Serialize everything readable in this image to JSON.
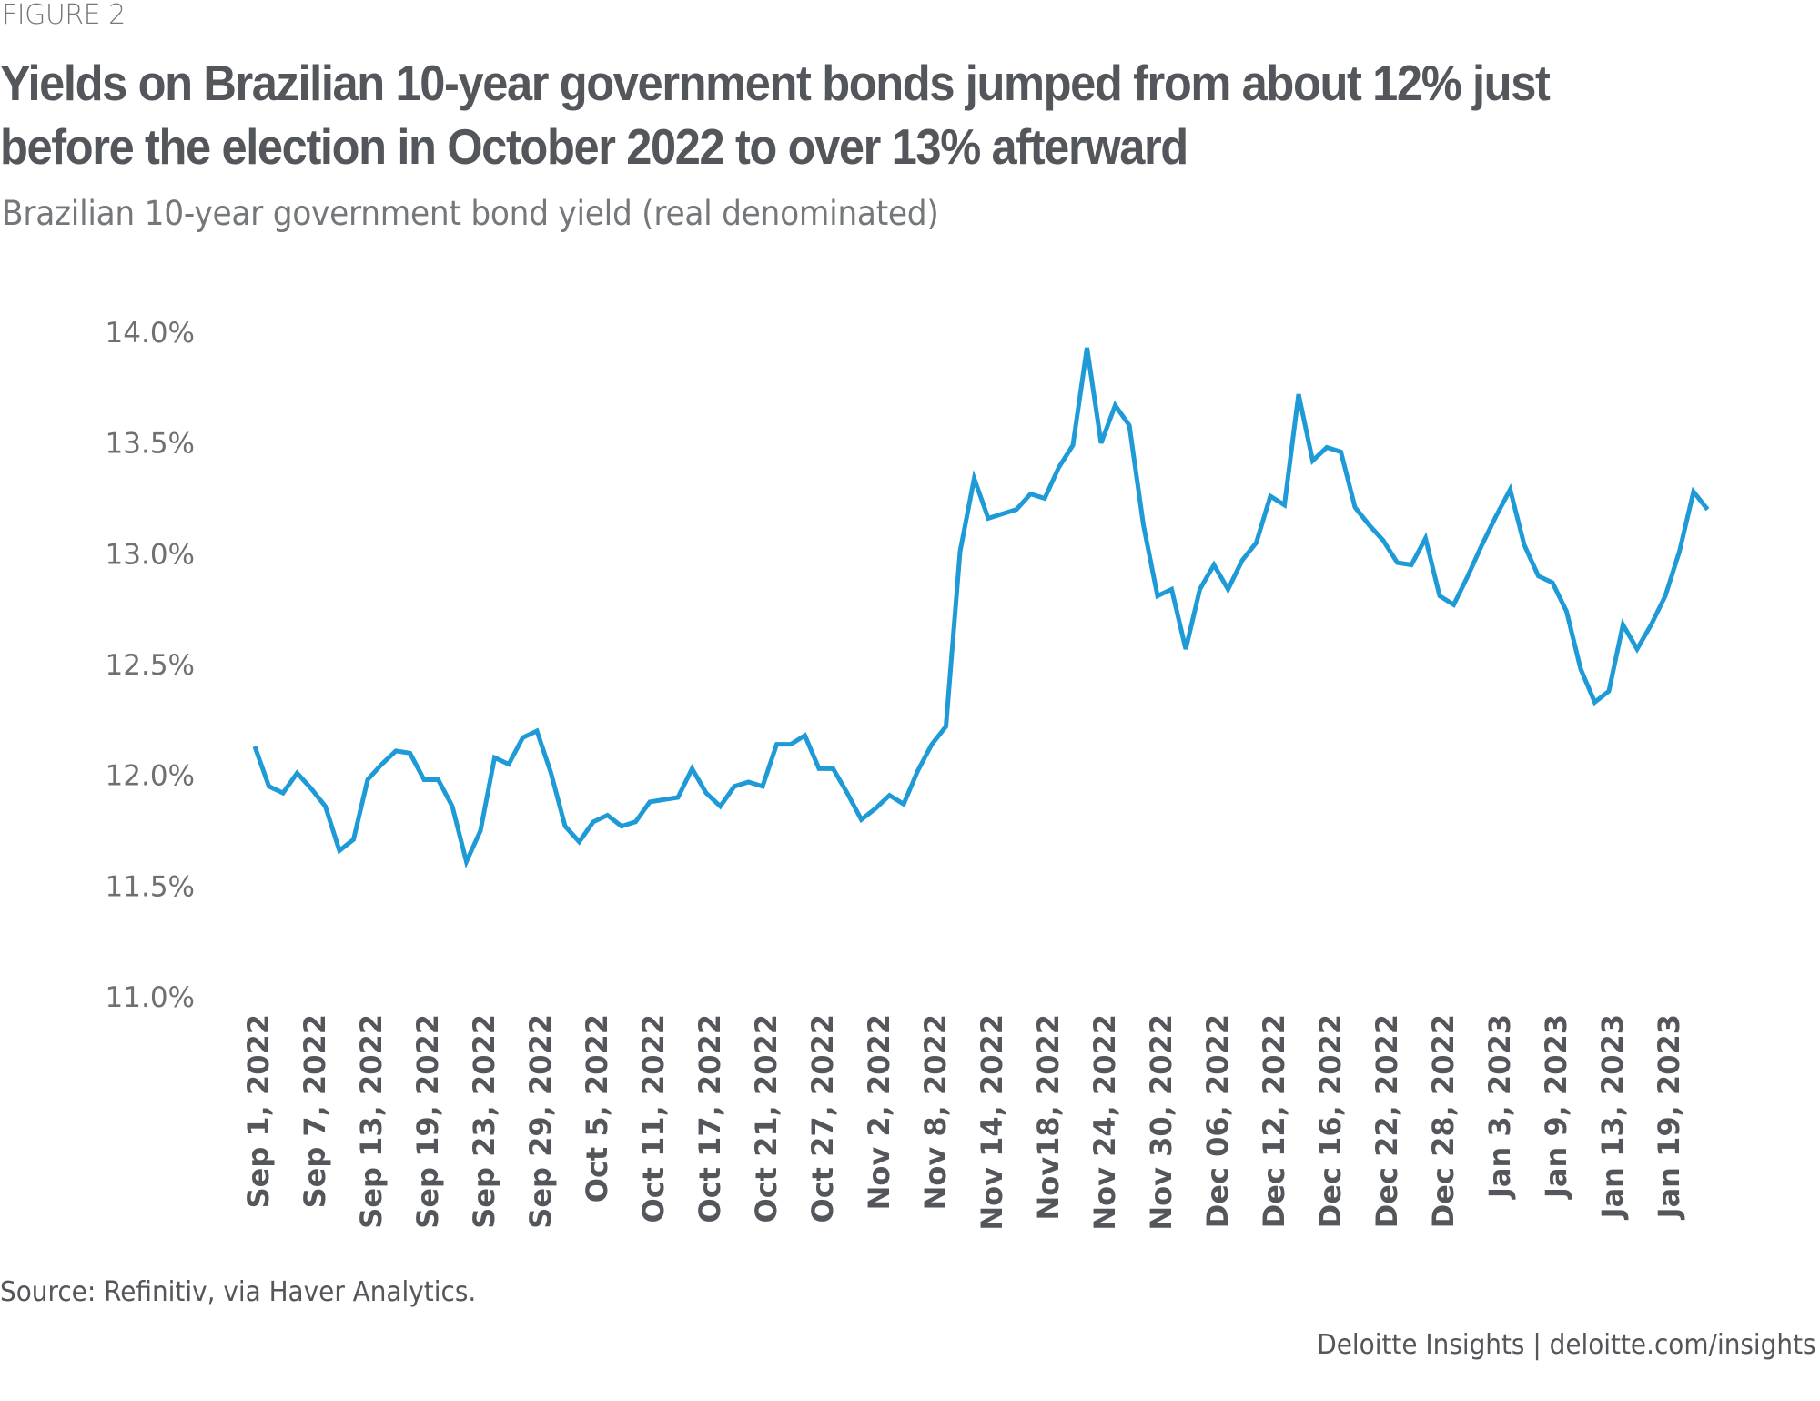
{
  "figure_label": "FIGURE 2",
  "title": "Yields on Brazilian 10-year government bonds jumped from about 12% just before the election in October 2022 to over 13% afterward",
  "subtitle": "Brazilian 10-year government bond yield (real denominated)",
  "source": "Source: Refinitiv, via Haver Analytics.",
  "credit": "Deloitte Insights | deloitte.com/insights",
  "colors": {
    "line": "#1E9AD6",
    "title": "#53565A",
    "axis_text": "#707070"
  },
  "chart_data": {
    "type": "line",
    "title": "Yields on Brazilian 10-year government bonds jumped from about 12% just before the election in October 2022 to over 13% afterward",
    "subtitle": "Brazilian 10-year government bond yield (real denominated)",
    "xlabel": "",
    "ylabel": "",
    "ylim": [
      11.0,
      14.0
    ],
    "yticks": [
      14.0,
      13.5,
      13.0,
      12.5,
      12.0,
      11.5,
      11.0
    ],
    "ytick_labels": [
      "14.0%",
      "13.5%",
      "13.0%",
      "12.5%",
      "12.0%",
      "11.5%",
      "11.0%"
    ],
    "grid": false,
    "legend": "none",
    "xtick_every": 4,
    "xtick_labels": [
      "Sep 1, 2022",
      "Sep 7, 2022",
      "Sep 13, 2022",
      "Sep 19, 2022",
      "Sep 23, 2022",
      "Sep 29, 2022",
      "Oct 5, 2022",
      "Oct 11, 2022",
      "Oct 17, 2022",
      "Oct 21, 2022",
      "Oct 27, 2022",
      "Nov 2, 2022",
      "Nov 8, 2022",
      "Nov 14, 2022",
      "Nov18, 2022",
      "Nov 24, 2022",
      "Nov 30, 2022",
      "Dec 06, 2022",
      "Dec 12, 2022",
      "Dec 16, 2022",
      "Dec 22, 2022",
      "Dec 28, 2022",
      "Jan 3, 2023",
      "Jan 9, 2023",
      "Jan 13, 2023",
      "Jan 19, 2023"
    ],
    "series": [
      {
        "name": "Brazilian 10-year government bond yield (%)",
        "values": [
          12.13,
          11.95,
          11.92,
          12.01,
          11.94,
          11.86,
          11.66,
          11.71,
          11.98,
          12.05,
          12.11,
          12.1,
          11.98,
          11.98,
          11.86,
          11.61,
          11.75,
          12.08,
          12.05,
          12.17,
          12.2,
          12.01,
          11.77,
          11.7,
          11.79,
          11.82,
          11.77,
          11.79,
          11.88,
          11.89,
          11.9,
          12.03,
          11.92,
          11.86,
          11.95,
          11.97,
          11.95,
          12.14,
          12.14,
          12.18,
          12.03,
          12.03,
          11.92,
          11.8,
          11.85,
          11.91,
          11.87,
          12.02,
          12.14,
          12.22,
          13.01,
          13.34,
          13.16,
          13.18,
          13.2,
          13.27,
          13.25,
          13.39,
          13.49,
          13.93,
          13.5,
          13.67,
          13.58,
          13.13,
          12.81,
          12.84,
          12.57,
          12.84,
          12.95,
          12.84,
          12.97,
          13.05,
          13.26,
          13.22,
          13.72,
          13.42,
          13.48,
          13.46,
          13.21,
          13.13,
          13.06,
          12.96,
          12.95,
          13.07,
          12.81,
          12.77,
          12.9,
          13.04,
          13.17,
          13.29,
          13.04,
          12.9,
          12.87,
          12.74,
          12.48,
          12.33,
          12.38,
          12.68,
          12.57,
          12.68,
          12.81,
          13.01,
          13.28,
          13.2
        ]
      }
    ]
  }
}
